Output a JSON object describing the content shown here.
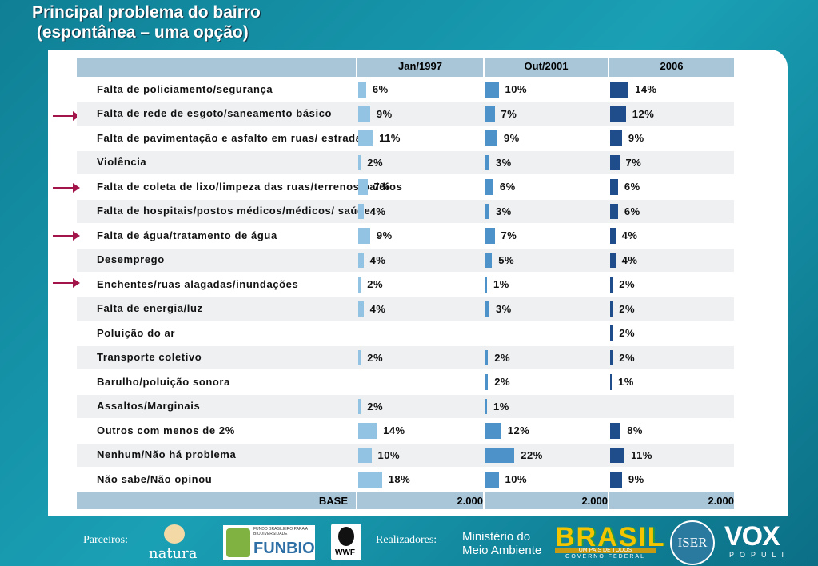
{
  "chart_data": {
    "type": "bar",
    "title": "Principal problema do bairro",
    "subtitle": " (espontânea – uma opção)",
    "categories": [
      "Falta de policiamento/segurança",
      "Falta de rede de esgoto/saneamento básico",
      "Falta de pavimentação e asfalto em ruas/ estradas",
      "Violência",
      "Falta de coleta de lixo/limpeza das ruas/terrenos baldios",
      "Falta de hospitais/postos médicos/médicos/ saúde",
      "Falta de água/tratamento de água",
      "Desemprego",
      "Enchentes/ruas alagadas/inundações",
      "Falta de energia/luz",
      "Poluição do ar",
      "Transporte coletivo",
      "Barulho/poluição sonora",
      "Assaltos/Marginais",
      "Outros com menos de 2%",
      "Nenhum/Não há problema",
      "Não sabe/Não opinou"
    ],
    "series": [
      {
        "name": "Jan/1997",
        "color": "#92c3e3",
        "values": [
          6,
          9,
          11,
          2,
          7,
          4,
          9,
          4,
          2,
          4,
          null,
          2,
          null,
          2,
          14,
          10,
          18
        ],
        "value_labels": [
          "6%",
          "9%",
          "11%",
          "2%",
          "7%",
          "4%",
          "9%",
          "4%",
          "2%",
          "4%",
          null,
          "2%",
          null,
          "2%",
          "14%",
          "10%",
          "18%"
        ]
      },
      {
        "name": "Out/2001",
        "color": "#4d93ca",
        "values": [
          10,
          7,
          9,
          3,
          6,
          3,
          7,
          5,
          1,
          3,
          null,
          2,
          2,
          1,
          12,
          22,
          10
        ],
        "value_labels": [
          "10%",
          "7%",
          "9%",
          "3%",
          "6%",
          "3%",
          "7%",
          "5%",
          "1%",
          "3%",
          null,
          "2%",
          "2%",
          "1%",
          "12%",
          "22%",
          "10%"
        ]
      },
      {
        "name": "2006",
        "color": "#1f4d8b",
        "values": [
          14,
          12,
          9,
          7,
          6,
          6,
          4,
          4,
          2,
          2,
          2,
          2,
          1,
          null,
          8,
          11,
          9
        ],
        "value_labels": [
          "14%",
          "12%",
          "9%",
          "7%",
          "6%",
          "6%",
          "4%",
          "4%",
          "2%",
          "2%",
          "2%",
          "2%",
          "1%",
          null,
          "8%",
          "11%",
          "9%"
        ]
      }
    ],
    "base_label": "BASE",
    "base_values": [
      "2.000",
      "2.000",
      "2.000"
    ]
  },
  "footer": {
    "partners_label": "Parceiros:",
    "natura": "natura",
    "funbio_small": "FUNDO BRASILEIRO PARA A BIODIVERSIDADE",
    "funbio": "FUNBIO",
    "wwf": "WWF",
    "makers_label": "Realizadores:",
    "ministry": [
      "Ministério do",
      "Meio Ambiente"
    ],
    "brasil": "BRASIL",
    "brasil_tag": "UM PAÍS DE TODOS",
    "brasil_gov": "GOVERNO FEDERAL",
    "iser": "ISER",
    "vox": "VOX",
    "populi": "POPULI"
  }
}
